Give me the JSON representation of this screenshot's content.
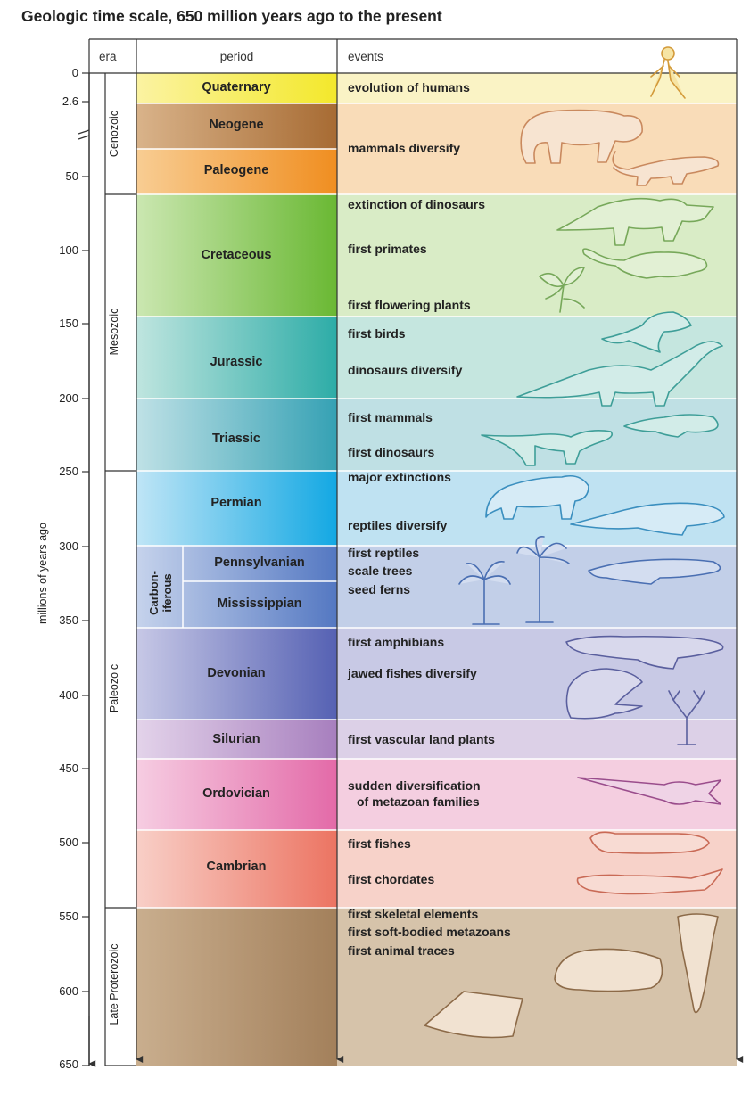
{
  "title": "Geologic time scale, 650 million years ago to the present",
  "headers": {
    "era": "era",
    "period": "period",
    "events": "events"
  },
  "axis": {
    "label": "millions of years ago",
    "ticks": [
      "0",
      "2.6",
      "50",
      "100",
      "150",
      "200",
      "250",
      "300",
      "350",
      "400",
      "450",
      "500",
      "550",
      "600",
      "650"
    ]
  },
  "eras": [
    {
      "name": "Cenozoic"
    },
    {
      "name": "Mesozoic"
    },
    {
      "name": "Paleozoic"
    },
    {
      "name": "Late Proterozoic"
    }
  ],
  "periods": [
    {
      "name": "Quaternary",
      "color": "#f5ef3a"
    },
    {
      "name": "Neogene",
      "color": "#b77a3e"
    },
    {
      "name": "Paleogene",
      "color": "#f3a141"
    },
    {
      "name": "Cretaceous",
      "color": "#7cc242"
    },
    {
      "name": "Jurassic",
      "color": "#37b3b0"
    },
    {
      "name": "Triassic",
      "color": "#3ea8b9"
    },
    {
      "name": "Permian",
      "color": "#22aee6"
    },
    {
      "name": "Carbon-iferous",
      "color": "#5b7fc4"
    },
    {
      "name": "Pennsylvanian",
      "color": "#6f8fcc"
    },
    {
      "name": "Mississippian",
      "color": "#5f82c8"
    },
    {
      "name": "Devonian",
      "color": "#5d6bb8"
    },
    {
      "name": "Silurian",
      "color": "#b48ac4"
    },
    {
      "name": "Ordovician",
      "color": "#e474ae"
    },
    {
      "name": "Cambrian",
      "color": "#ee7b6e"
    },
    {
      "name": "",
      "color": "#a6835e"
    }
  ],
  "events": [
    "evolution of humans",
    "mammals diversify",
    "extinction of dinosaurs",
    "first primates",
    "first flowering plants",
    "first birds",
    "dinosaurs diversify",
    "first mammals",
    "first dinosaurs",
    "major extinctions",
    "reptiles diversify",
    "first reptiles",
    "scale trees",
    "seed ferns",
    "first amphibians",
    "jawed fishes diversify",
    "first vascular land plants",
    "sudden diversification",
    "of metazoan families",
    "first fishes",
    "first chordates",
    "first skeletal elements",
    "first soft-bodied metazoans",
    "first animal traces"
  ],
  "illustrations": [
    "human-figure-icon",
    "rhino-mammal-icon",
    "lizard-mammal-icon",
    "triceratops-icon",
    "primate-icon",
    "flower-icon",
    "bird-icon",
    "sauropod-icon",
    "early-mammal-icon",
    "early-dinosaur-icon",
    "therapsid-icon",
    "reptile-icon",
    "palm-tree-icon",
    "scale-tree-icon",
    "early-reptile-icon",
    "amphibian-icon",
    "fish-icon",
    "vascular-plant-icon",
    "nautiloid-icon",
    "trilobite-fish-icon",
    "chordate-icon",
    "shell-icon",
    "dickinsonia-icon",
    "trace-fossil-icon"
  ]
}
